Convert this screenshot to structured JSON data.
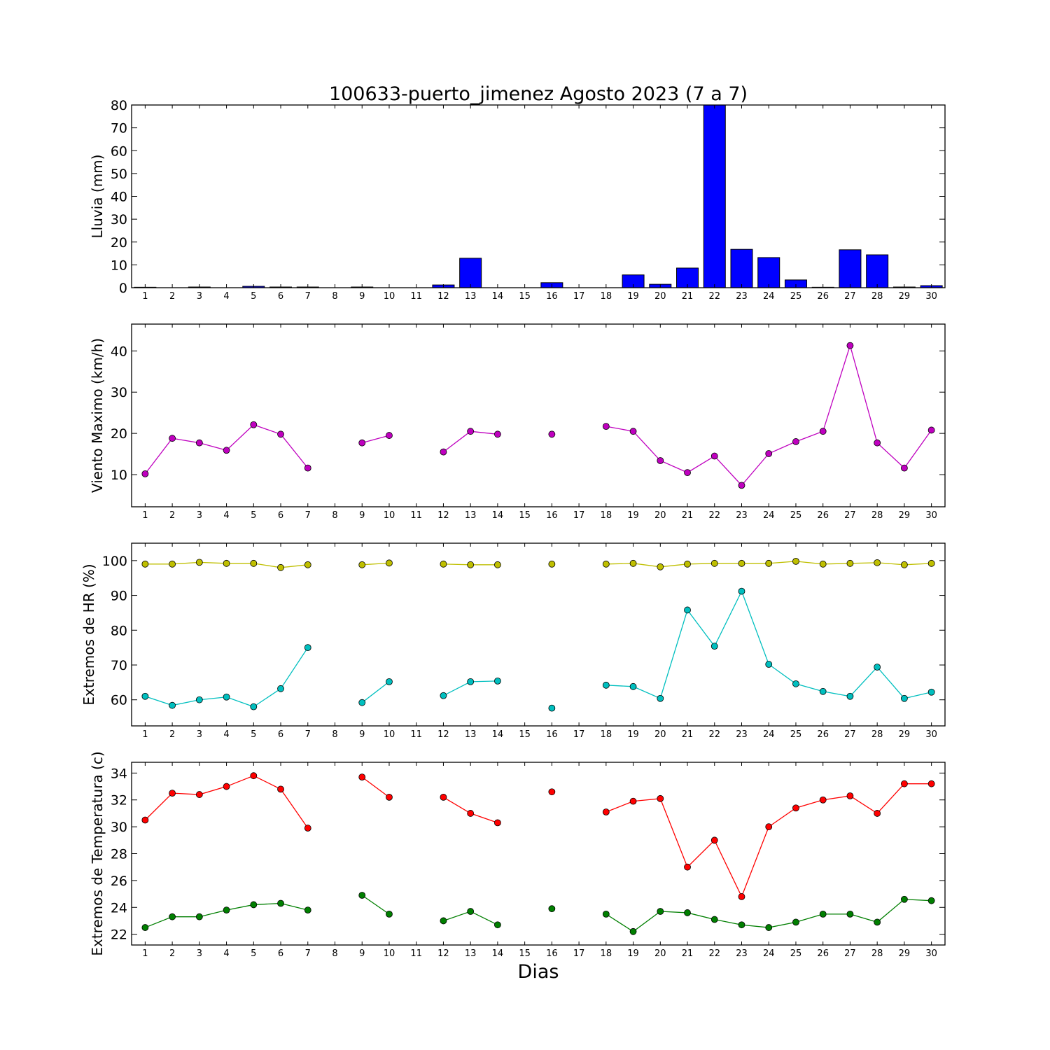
{
  "title": "100633-puerto_jimenez Agosto 2023  (7 a 7)",
  "xlabel": "Dias",
  "colors": {
    "bar": "#0000ff",
    "wind": "#bf00bf",
    "hr_max": "#bfbf00",
    "hr_min": "#00bfbf",
    "t_max": "#ff0000",
    "t_min": "#007f00"
  },
  "chart_data": [
    {
      "type": "bar",
      "ylabel": "Lluvia (mm)",
      "ylim": [
        0,
        80
      ],
      "yticks": [
        0,
        10,
        20,
        30,
        40,
        50,
        60,
        70,
        80
      ],
      "x": [
        1,
        2,
        3,
        4,
        5,
        6,
        7,
        8,
        9,
        10,
        11,
        12,
        13,
        14,
        15,
        16,
        17,
        18,
        19,
        20,
        21,
        22,
        23,
        24,
        25,
        26,
        27,
        28,
        29,
        30
      ],
      "values": [
        0.2,
        0,
        0.3,
        0,
        0.6,
        0.3,
        0.3,
        0,
        0.3,
        0,
        0,
        1.2,
        12.9,
        0,
        0,
        2.2,
        0,
        0,
        5.6,
        1.5,
        8.6,
        80.5,
        16.8,
        13.2,
        3.4,
        0.2,
        16.6,
        14.4,
        0.3,
        0.9
      ],
      "grid": false
    },
    {
      "type": "line",
      "ylabel": "Viento Maximo (km/h)",
      "ylim": [
        2.2,
        46.5
      ],
      "yticks": [
        10,
        20,
        30,
        40
      ],
      "x": [
        1,
        2,
        3,
        4,
        5,
        6,
        7,
        8,
        9,
        10,
        11,
        12,
        13,
        14,
        15,
        16,
        17,
        18,
        19,
        20,
        21,
        22,
        23,
        24,
        25,
        26,
        27,
        28,
        29,
        30
      ],
      "series": [
        {
          "color_key": "wind",
          "values": [
            10.2,
            18.8,
            17.7,
            15.9,
            22.1,
            19.8,
            11.6,
            null,
            17.7,
            19.5,
            null,
            15.5,
            20.5,
            19.8,
            null,
            19.8,
            null,
            21.7,
            20.5,
            13.4,
            10.5,
            14.5,
            7.4,
            15.1,
            18.0,
            20.5,
            41.3,
            17.7,
            11.6,
            20.8
          ]
        }
      ],
      "grid": false
    },
    {
      "type": "line",
      "ylabel": "Extremos de HR (%)",
      "ylim": [
        52.5,
        105
      ],
      "yticks": [
        60,
        70,
        80,
        90,
        100
      ],
      "x": [
        1,
        2,
        3,
        4,
        5,
        6,
        7,
        8,
        9,
        10,
        11,
        12,
        13,
        14,
        15,
        16,
        17,
        18,
        19,
        20,
        21,
        22,
        23,
        24,
        25,
        26,
        27,
        28,
        29,
        30
      ],
      "series": [
        {
          "color_key": "hr_max",
          "values": [
            99,
            99,
            99.5,
            99.2,
            99.2,
            98,
            98.8,
            null,
            98.8,
            99.3,
            null,
            99,
            98.8,
            98.8,
            null,
            99,
            null,
            99,
            99.2,
            98.2,
            99,
            99.2,
            99.2,
            99.2,
            99.8,
            99,
            99.2,
            99.4,
            98.8,
            99.2
          ]
        },
        {
          "color_key": "hr_min",
          "values": [
            61,
            58.4,
            60,
            60.8,
            58,
            63.2,
            75,
            null,
            59.2,
            65.2,
            null,
            61.2,
            65.2,
            65.4,
            null,
            57.6,
            null,
            64.2,
            63.8,
            60.4,
            85.8,
            75.4,
            91.2,
            70.2,
            64.6,
            62.4,
            61,
            69.4,
            60.4,
            62.2
          ]
        }
      ],
      "grid": false
    },
    {
      "type": "line",
      "ylabel": "Extremos de Temperatura (c)",
      "ylim": [
        21.2,
        34.8
      ],
      "yticks": [
        22,
        24,
        26,
        28,
        30,
        32,
        34
      ],
      "x": [
        1,
        2,
        3,
        4,
        5,
        6,
        7,
        8,
        9,
        10,
        11,
        12,
        13,
        14,
        15,
        16,
        17,
        18,
        19,
        20,
        21,
        22,
        23,
        24,
        25,
        26,
        27,
        28,
        29,
        30
      ],
      "series": [
        {
          "color_key": "t_max",
          "values": [
            30.5,
            32.5,
            32.4,
            33,
            33.8,
            32.8,
            29.9,
            null,
            33.7,
            32.2,
            null,
            32.2,
            31,
            30.3,
            null,
            32.6,
            null,
            31.1,
            31.9,
            32.1,
            27,
            29,
            24.8,
            30,
            31.4,
            32,
            32.3,
            31,
            33.2,
            33.2
          ]
        },
        {
          "color_key": "t_min",
          "values": [
            22.5,
            23.3,
            23.3,
            23.8,
            24.2,
            24.3,
            23.8,
            null,
            24.9,
            23.5,
            null,
            23,
            23.7,
            22.7,
            null,
            23.9,
            null,
            23.5,
            22.2,
            23.7,
            23.6,
            23.1,
            22.7,
            22.5,
            22.9,
            23.5,
            23.5,
            22.9,
            24.6,
            24.5
          ]
        }
      ],
      "grid": false
    }
  ]
}
